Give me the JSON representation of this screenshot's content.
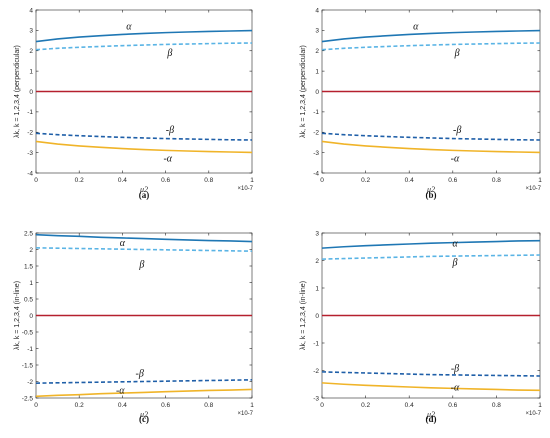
{
  "colors": {
    "alpha": "#1f77b4",
    "beta": "#5ab4e5",
    "neg_beta": "#1f5fa8",
    "neg_alpha": "#f0b429",
    "zero": "#b5202e",
    "axis": "#262626"
  },
  "chart_data": [
    {
      "type": "line",
      "caption": "(a)",
      "ylabel": "λ_k, k = 1,2,3,4 (perpendicular)",
      "xlabel": "μ_2",
      "x_exponent": "×10^-7",
      "xlim": [
        0,
        1
      ],
      "ylim": [
        -4,
        4
      ],
      "xticks": [
        0,
        0.2,
        0.4,
        0.6,
        0.8,
        1
      ],
      "xtick_labels": [
        "0",
        "0.2",
        "0.4",
        "0.6",
        "0.8",
        "1"
      ],
      "yticks": [
        -4,
        -3,
        -2,
        -1,
        0,
        1,
        2,
        3,
        4
      ],
      "ytick_labels": [
        "-4",
        "-3",
        "-2",
        "-1",
        "0",
        "1",
        "2",
        "3",
        "4"
      ],
      "x": [
        0,
        0.1,
        0.2,
        0.3,
        0.4,
        0.5,
        0.6,
        0.7,
        0.8,
        0.9,
        1
      ],
      "series": [
        {
          "label": "α",
          "style": "solid",
          "color": "alpha",
          "values": [
            2.45,
            2.58,
            2.67,
            2.74,
            2.8,
            2.85,
            2.89,
            2.92,
            2.95,
            2.97,
            2.99
          ],
          "ann_x": 0.43,
          "ann_y": 3.2
        },
        {
          "label": "β",
          "style": "dashed",
          "color": "beta",
          "values": [
            2.05,
            2.12,
            2.17,
            2.21,
            2.25,
            2.28,
            2.31,
            2.33,
            2.35,
            2.37,
            2.38
          ],
          "ann_x": 0.62,
          "ann_y": 1.9
        },
        {
          "label": "",
          "style": "solid",
          "color": "zero",
          "values": [
            0,
            0,
            0,
            0,
            0,
            0,
            0,
            0,
            0,
            0,
            0
          ]
        },
        {
          "label": "-β",
          "style": "dashed",
          "color": "neg_beta",
          "values": [
            -2.05,
            -2.12,
            -2.17,
            -2.21,
            -2.25,
            -2.28,
            -2.31,
            -2.33,
            -2.35,
            -2.37,
            -2.38
          ],
          "ann_x": 0.62,
          "ann_y": -1.9
        },
        {
          "label": "-α",
          "style": "solid",
          "color": "neg_alpha",
          "values": [
            -2.45,
            -2.58,
            -2.67,
            -2.74,
            -2.8,
            -2.85,
            -2.89,
            -2.92,
            -2.95,
            -2.97,
            -2.99
          ],
          "ann_x": 0.61,
          "ann_y": -3.3
        }
      ]
    },
    {
      "type": "line",
      "caption": "(b)",
      "ylabel": "λ_k, k = 1,2,3,4 (perpendicular)",
      "xlabel": "μ_2",
      "x_exponent": "×10^-7",
      "xlim": [
        0,
        1
      ],
      "ylim": [
        -4,
        4
      ],
      "xticks": [
        0,
        0.2,
        0.4,
        0.6,
        0.8,
        1
      ],
      "xtick_labels": [
        "0",
        "0.2",
        "0.4",
        "0.6",
        "0.8",
        "1"
      ],
      "yticks": [
        -4,
        -3,
        -2,
        -1,
        0,
        1,
        2,
        3,
        4
      ],
      "ytick_labels": [
        "-4",
        "-3",
        "-2",
        "-1",
        "0",
        "1",
        "2",
        "3",
        "4"
      ],
      "x": [
        0,
        0.1,
        0.2,
        0.3,
        0.4,
        0.5,
        0.6,
        0.7,
        0.8,
        0.9,
        1
      ],
      "series": [
        {
          "label": "α",
          "style": "solid",
          "color": "alpha",
          "values": [
            2.45,
            2.58,
            2.67,
            2.74,
            2.8,
            2.85,
            2.89,
            2.92,
            2.95,
            2.97,
            2.99
          ],
          "ann_x": 0.43,
          "ann_y": 3.2
        },
        {
          "label": "β",
          "style": "dashed",
          "color": "beta",
          "values": [
            2.05,
            2.12,
            2.17,
            2.21,
            2.25,
            2.28,
            2.31,
            2.33,
            2.35,
            2.37,
            2.38
          ],
          "ann_x": 0.62,
          "ann_y": 1.9
        },
        {
          "label": "",
          "style": "solid",
          "color": "zero",
          "values": [
            0,
            0,
            0,
            0,
            0,
            0,
            0,
            0,
            0,
            0,
            0
          ]
        },
        {
          "label": "-β",
          "style": "dashed",
          "color": "neg_beta",
          "values": [
            -2.05,
            -2.12,
            -2.17,
            -2.21,
            -2.25,
            -2.28,
            -2.31,
            -2.33,
            -2.35,
            -2.37,
            -2.38
          ],
          "ann_x": 0.62,
          "ann_y": -1.9
        },
        {
          "label": "-α",
          "style": "solid",
          "color": "neg_alpha",
          "values": [
            -2.45,
            -2.58,
            -2.67,
            -2.74,
            -2.8,
            -2.85,
            -2.89,
            -2.92,
            -2.95,
            -2.97,
            -2.99
          ],
          "ann_x": 0.61,
          "ann_y": -3.3
        }
      ]
    },
    {
      "type": "line",
      "caption": "(c)",
      "ylabel": "λ_k, k = 1,2,3,4 (in-line)",
      "xlabel": "μ_2",
      "x_exponent": "×10^-7",
      "xlim": [
        0,
        1
      ],
      "ylim": [
        -2.5,
        2.5
      ],
      "xticks": [
        0,
        0.2,
        0.4,
        0.6,
        0.8,
        1
      ],
      "xtick_labels": [
        "0",
        "0.2",
        "0.4",
        "0.6",
        "0.8",
        "1"
      ],
      "yticks": [
        -2.5,
        -2,
        -1.5,
        -1,
        -0.5,
        0,
        0.5,
        1,
        1.5,
        2,
        2.5
      ],
      "ytick_labels": [
        "-2.5",
        "-2",
        "-1.5",
        "-1",
        "-0.5",
        "0",
        "0.5",
        "1",
        "1.5",
        "2",
        "2.5"
      ],
      "x": [
        0,
        0.1,
        0.2,
        0.3,
        0.4,
        0.5,
        0.6,
        0.7,
        0.8,
        0.9,
        1
      ],
      "series": [
        {
          "label": "α",
          "style": "solid",
          "color": "alpha",
          "values": [
            2.45,
            2.42,
            2.4,
            2.37,
            2.35,
            2.33,
            2.31,
            2.29,
            2.27,
            2.26,
            2.24
          ],
          "ann_x": 0.4,
          "ann_y": 2.2
        },
        {
          "label": "β",
          "style": "dashed",
          "color": "beta",
          "values": [
            2.05,
            2.04,
            2.03,
            2.02,
            2.01,
            2.0,
            1.99,
            1.98,
            1.97,
            1.96,
            1.95
          ],
          "ann_x": 0.49,
          "ann_y": 1.55
        },
        {
          "label": "",
          "style": "solid",
          "color": "zero",
          "values": [
            0,
            0,
            0,
            0,
            0,
            0,
            0,
            0,
            0,
            0,
            0
          ]
        },
        {
          "label": "-β",
          "style": "dashed",
          "color": "neg_beta",
          "values": [
            -2.05,
            -2.04,
            -2.03,
            -2.02,
            -2.01,
            -2.0,
            -1.99,
            -1.98,
            -1.97,
            -1.96,
            -1.95
          ],
          "ann_x": 0.48,
          "ann_y": -1.75
        },
        {
          "label": "-α",
          "style": "solid",
          "color": "neg_alpha",
          "values": [
            -2.45,
            -2.42,
            -2.4,
            -2.37,
            -2.35,
            -2.33,
            -2.31,
            -2.29,
            -2.27,
            -2.26,
            -2.24
          ],
          "ann_x": 0.39,
          "ann_y": -2.28
        }
      ]
    },
    {
      "type": "line",
      "caption": "(d)",
      "ylabel": "λ_k, k = 1,2,3,4 (in-line)",
      "xlabel": "μ_2",
      "x_exponent": "×10^-7",
      "xlim": [
        0,
        1
      ],
      "ylim": [
        -3,
        3
      ],
      "xticks": [
        0,
        0.2,
        0.4,
        0.6,
        0.8,
        1
      ],
      "xtick_labels": [
        "0",
        "0.2",
        "0.4",
        "0.6",
        "0.8",
        "1"
      ],
      "yticks": [
        -3,
        -2,
        -1,
        0,
        1,
        2,
        3
      ],
      "ytick_labels": [
        "-3",
        "-2",
        "-1",
        "0",
        "1",
        "2",
        "3"
      ],
      "x": [
        0,
        0.1,
        0.2,
        0.3,
        0.4,
        0.5,
        0.6,
        0.7,
        0.8,
        0.9,
        1
      ],
      "series": [
        {
          "label": "α",
          "style": "solid",
          "color": "alpha",
          "values": [
            2.45,
            2.5,
            2.54,
            2.57,
            2.6,
            2.63,
            2.65,
            2.67,
            2.69,
            2.71,
            2.72
          ],
          "ann_x": 0.61,
          "ann_y": 2.62
        },
        {
          "label": "β",
          "style": "dashed",
          "color": "beta",
          "values": [
            2.05,
            2.07,
            2.09,
            2.11,
            2.13,
            2.15,
            2.16,
            2.17,
            2.18,
            2.19,
            2.2
          ],
          "ann_x": 0.61,
          "ann_y": 1.92
        },
        {
          "label": "",
          "style": "solid",
          "color": "zero",
          "values": [
            0,
            0,
            0,
            0,
            0,
            0,
            0,
            0,
            0,
            0,
            0
          ]
        },
        {
          "label": "-β",
          "style": "dashed",
          "color": "neg_beta",
          "values": [
            -2.05,
            -2.07,
            -2.09,
            -2.11,
            -2.13,
            -2.15,
            -2.16,
            -2.17,
            -2.18,
            -2.19,
            -2.2
          ],
          "ann_x": 0.61,
          "ann_y": -1.92
        },
        {
          "label": "-α",
          "style": "solid",
          "color": "neg_alpha",
          "values": [
            -2.45,
            -2.5,
            -2.54,
            -2.57,
            -2.6,
            -2.63,
            -2.65,
            -2.67,
            -2.69,
            -2.71,
            -2.72
          ],
          "ann_x": 0.61,
          "ann_y": -2.62
        }
      ]
    }
  ]
}
